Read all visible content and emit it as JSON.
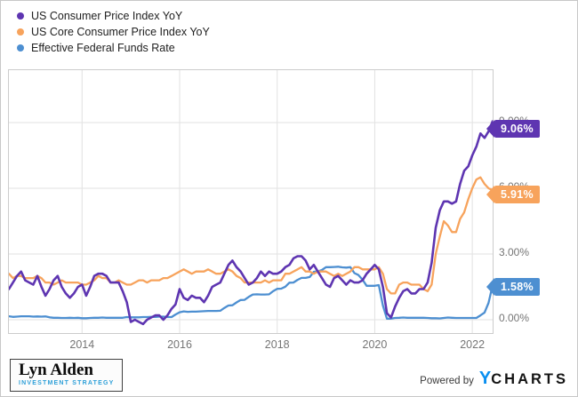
{
  "chart_data": {
    "type": "line",
    "title": "",
    "xlabel": "",
    "ylabel": "",
    "unit": "%",
    "frequency": "monthly",
    "x_start": "2012-07",
    "x_end": "2022-06",
    "ylim": [
      -0.65,
      11.35
    ],
    "grid": true,
    "legend_position": "top-left",
    "y_ticks": [
      {
        "label": "9.00%",
        "value": 9
      },
      {
        "label": "6.00%",
        "value": 6
      },
      {
        "label": "3.00%",
        "value": 3
      },
      {
        "label": "0.00%",
        "value": 0
      }
    ],
    "x_ticks": [
      {
        "label": "2014",
        "index": 18
      },
      {
        "label": "2016",
        "index": 42
      },
      {
        "label": "2018",
        "index": 66
      },
      {
        "label": "2020",
        "index": 90
      },
      {
        "label": "2022",
        "index": 114
      }
    ],
    "series": [
      {
        "name": "US Consumer Price Index YoY",
        "color": "#5e35b1",
        "last_label": "9.06%",
        "values": [
          1.4,
          1.7,
          2.0,
          2.2,
          1.8,
          1.7,
          1.6,
          2.0,
          1.5,
          1.1,
          1.4,
          1.8,
          2.0,
          1.5,
          1.2,
          1.0,
          1.2,
          1.5,
          1.6,
          1.1,
          1.5,
          2.0,
          2.1,
          2.1,
          2.0,
          1.7,
          1.7,
          1.7,
          1.3,
          0.8,
          -0.1,
          0.0,
          -0.1,
          -0.2,
          0.0,
          0.1,
          0.2,
          0.2,
          0.0,
          0.2,
          0.5,
          0.7,
          1.4,
          1.0,
          0.9,
          1.1,
          1.0,
          1.0,
          0.8,
          1.1,
          1.5,
          1.6,
          1.7,
          2.1,
          2.5,
          2.7,
          2.4,
          2.2,
          1.9,
          1.6,
          1.7,
          1.9,
          2.2,
          2.0,
          2.2,
          2.1,
          2.1,
          2.2,
          2.4,
          2.5,
          2.8,
          2.9,
          2.9,
          2.7,
          2.3,
          2.5,
          2.2,
          1.9,
          1.6,
          1.5,
          1.9,
          2.0,
          1.8,
          1.6,
          1.8,
          1.7,
          1.7,
          1.8,
          2.1,
          2.3,
          2.5,
          2.3,
          1.5,
          0.3,
          0.1,
          0.6,
          1.0,
          1.3,
          1.4,
          1.2,
          1.2,
          1.4,
          1.4,
          1.7,
          2.6,
          4.2,
          5.0,
          5.4,
          5.4,
          5.3,
          5.4,
          6.2,
          6.8,
          7.0,
          7.5,
          7.9,
          8.5,
          8.3,
          8.6,
          9.06
        ]
      },
      {
        "name": "US Core Consumer Price Index YoY",
        "color": "#f7a35c",
        "last_label": "5.91%",
        "values": [
          2.1,
          1.9,
          2.0,
          2.0,
          1.9,
          1.9,
          1.9,
          2.0,
          1.9,
          1.7,
          1.7,
          1.6,
          1.7,
          1.8,
          1.7,
          1.7,
          1.7,
          1.7,
          1.6,
          1.6,
          1.7,
          1.8,
          2.0,
          1.9,
          1.9,
          1.7,
          1.7,
          1.8,
          1.7,
          1.6,
          1.6,
          1.7,
          1.8,
          1.8,
          1.7,
          1.8,
          1.8,
          1.8,
          1.9,
          1.9,
          2.0,
          2.1,
          2.2,
          2.3,
          2.2,
          2.1,
          2.2,
          2.2,
          2.2,
          2.3,
          2.2,
          2.1,
          2.1,
          2.2,
          2.3,
          2.2,
          2.0,
          1.9,
          1.7,
          1.7,
          1.7,
          1.7,
          1.7,
          1.8,
          1.7,
          1.8,
          1.8,
          1.8,
          2.1,
          2.1,
          2.2,
          2.3,
          2.4,
          2.2,
          2.2,
          2.1,
          2.2,
          2.2,
          2.2,
          2.1,
          2.0,
          2.1,
          2.0,
          2.1,
          2.2,
          2.4,
          2.4,
          2.3,
          2.3,
          2.3,
          2.3,
          2.4,
          2.1,
          1.4,
          1.2,
          1.2,
          1.6,
          1.7,
          1.7,
          1.6,
          1.6,
          1.6,
          1.4,
          1.3,
          1.6,
          3.0,
          3.8,
          4.5,
          4.3,
          4.0,
          4.0,
          4.6,
          4.9,
          5.5,
          6.0,
          6.4,
          6.5,
          6.2,
          6.0,
          5.91
        ]
      },
      {
        "name": "Effective Federal Funds Rate",
        "color": "#4d8fd1",
        "last_label": "1.58%",
        "values": [
          0.16,
          0.13,
          0.14,
          0.16,
          0.16,
          0.16,
          0.14,
          0.15,
          0.14,
          0.15,
          0.11,
          0.09,
          0.09,
          0.08,
          0.08,
          0.09,
          0.08,
          0.09,
          0.07,
          0.07,
          0.08,
          0.09,
          0.09,
          0.1,
          0.09,
          0.09,
          0.09,
          0.09,
          0.09,
          0.12,
          0.11,
          0.11,
          0.11,
          0.12,
          0.12,
          0.13,
          0.13,
          0.14,
          0.14,
          0.12,
          0.12,
          0.24,
          0.34,
          0.38,
          0.36,
          0.37,
          0.37,
          0.38,
          0.39,
          0.4,
          0.4,
          0.4,
          0.41,
          0.54,
          0.65,
          0.66,
          0.79,
          0.9,
          0.91,
          1.04,
          1.15,
          1.16,
          1.15,
          1.15,
          1.16,
          1.3,
          1.41,
          1.42,
          1.51,
          1.69,
          1.7,
          1.82,
          1.91,
          1.91,
          1.95,
          2.19,
          2.2,
          2.27,
          2.4,
          2.4,
          2.41,
          2.42,
          2.39,
          2.38,
          2.4,
          2.13,
          2.04,
          1.83,
          1.55,
          1.55,
          1.55,
          1.58,
          0.65,
          0.05,
          0.05,
          0.08,
          0.09,
          0.1,
          0.09,
          0.09,
          0.09,
          0.09,
          0.09,
          0.08,
          0.07,
          0.07,
          0.06,
          0.08,
          0.1,
          0.09,
          0.08,
          0.08,
          0.08,
          0.08,
          0.08,
          0.08,
          0.2,
          0.33,
          0.77,
          1.58
        ]
      }
    ]
  },
  "footer": {
    "logo_line1": "Lyn Alden",
    "logo_line2": "INVESTMENT STRATEGY",
    "powered_by": "Powered by",
    "brand_y": "Y",
    "brand_rest": "CHARTS"
  },
  "colors": {
    "grid": "#e2e2e2",
    "plot_border": "#cccccc",
    "tick_text": "#757575"
  }
}
